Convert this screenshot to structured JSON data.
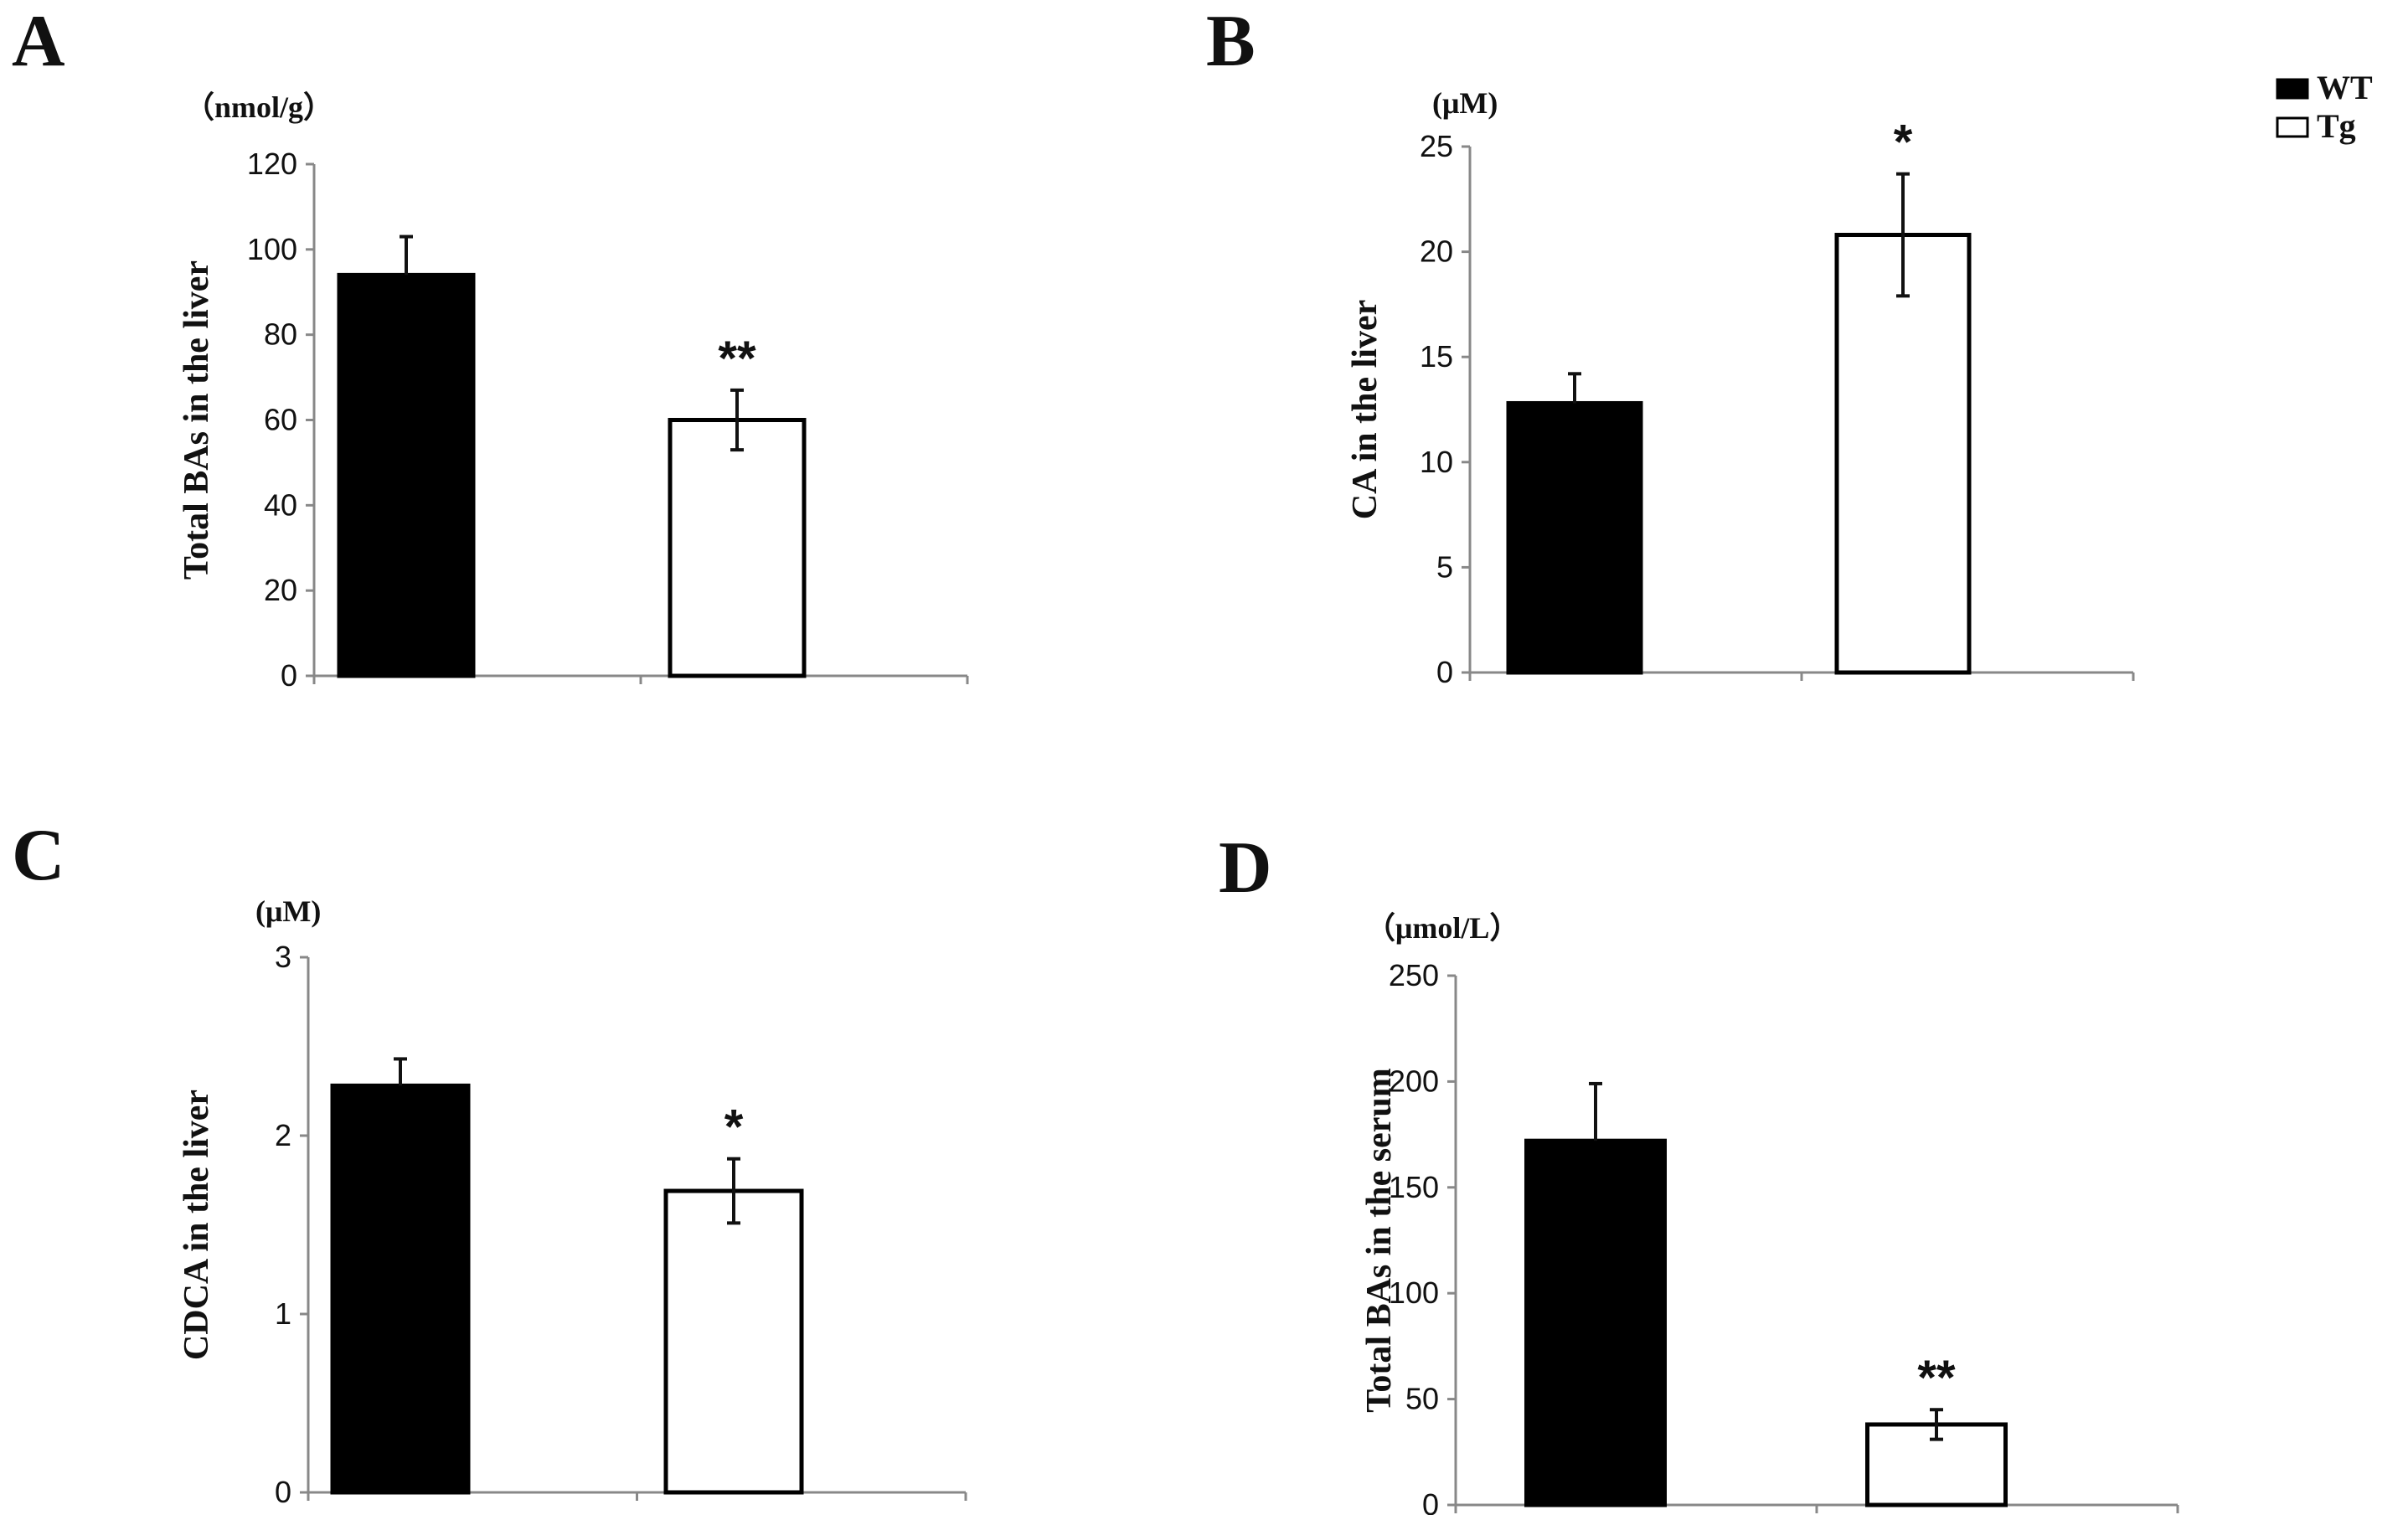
{
  "legend": [
    {
      "name": "WT",
      "fill": "#000000"
    },
    {
      "name": "Tg",
      "fill": "#ffffff"
    }
  ],
  "chart_data": [
    {
      "type": "bar",
      "panel": "A",
      "unit": "（nmol/g）",
      "ylabel": "Total BAs in the liver",
      "ylim": [
        0,
        120
      ],
      "yticks": [
        0,
        20,
        40,
        60,
        80,
        100,
        120
      ],
      "categories": [
        "WT",
        "Tg"
      ],
      "values": [
        94,
        60
      ],
      "errors": [
        9,
        7
      ],
      "significance": [
        "",
        "**"
      ]
    },
    {
      "type": "bar",
      "panel": "B",
      "unit": "(μM)",
      "ylabel": "CA in the liver",
      "ylim": [
        0,
        25
      ],
      "yticks": [
        0,
        5,
        10,
        15,
        20,
        25
      ],
      "categories": [
        "WT",
        "Tg"
      ],
      "values": [
        12.8,
        20.8
      ],
      "errors": [
        1.4,
        2.9
      ],
      "significance": [
        "",
        "*"
      ]
    },
    {
      "type": "bar",
      "panel": "C",
      "unit": "(μM)",
      "ylabel": "CDCA in the liver",
      "ylim": [
        0,
        3
      ],
      "yticks": [
        0,
        1,
        2,
        3
      ],
      "categories": [
        "WT",
        "Tg"
      ],
      "values": [
        2.28,
        1.69
      ],
      "errors": [
        0.15,
        0.18
      ],
      "significance": [
        "",
        "*"
      ]
    },
    {
      "type": "bar",
      "panel": "D",
      "unit": "（μmol/L）",
      "ylabel": "Total BAs in the serum",
      "ylim": [
        0,
        250
      ],
      "yticks": [
        0,
        50,
        100,
        150,
        200,
        250
      ],
      "categories": [
        "WT",
        "Tg"
      ],
      "values": [
        172,
        38
      ],
      "errors": [
        27,
        7
      ],
      "significance": [
        "",
        "**"
      ]
    }
  ]
}
